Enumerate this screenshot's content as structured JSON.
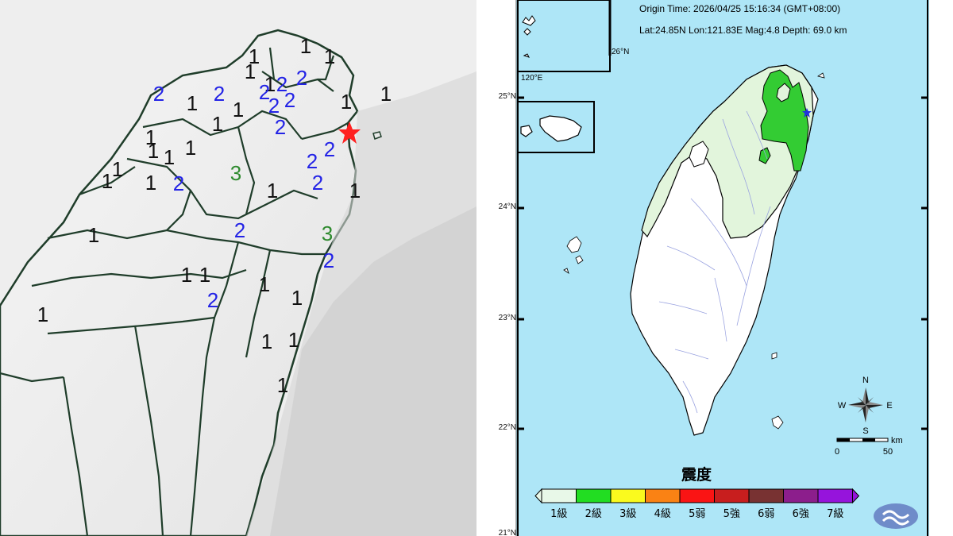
{
  "left_map": {
    "epicenter_marker": "red-star",
    "intensity_labels": [
      {
        "text": "1",
        "level": "1"
      },
      {
        "text": "1",
        "level": "1"
      },
      {
        "text": "1",
        "level": "1"
      },
      {
        "text": "1",
        "level": "1"
      },
      {
        "text": "2",
        "level": "2"
      },
      {
        "text": "1",
        "level": "1"
      },
      {
        "text": "2",
        "level": "2"
      },
      {
        "text": "2",
        "level": "2"
      },
      {
        "text": "2",
        "level": "2"
      },
      {
        "text": "2",
        "level": "2"
      },
      {
        "text": "1",
        "level": "1"
      },
      {
        "text": "1",
        "level": "1"
      },
      {
        "text": "2",
        "level": "2"
      },
      {
        "text": "2",
        "level": "2"
      },
      {
        "text": "1",
        "level": "1"
      },
      {
        "text": "1",
        "level": "1"
      },
      {
        "text": "2",
        "level": "2"
      },
      {
        "text": "1",
        "level": "1"
      },
      {
        "text": "1",
        "level": "1"
      },
      {
        "text": "1",
        "level": "1"
      },
      {
        "text": "1",
        "level": "1"
      },
      {
        "text": "1",
        "level": "1"
      },
      {
        "text": "1",
        "level": "1"
      },
      {
        "text": "1",
        "level": "1"
      },
      {
        "text": "1",
        "level": "1"
      },
      {
        "text": "2",
        "level": "2"
      },
      {
        "text": "3",
        "level": "3"
      },
      {
        "text": "2",
        "level": "2"
      },
      {
        "text": "2",
        "level": "2"
      },
      {
        "text": "2",
        "level": "2"
      },
      {
        "text": "1",
        "level": "1"
      },
      {
        "text": "1",
        "level": "1"
      },
      {
        "text": "2",
        "level": "2"
      },
      {
        "text": "3",
        "level": "3"
      },
      {
        "text": "2",
        "level": "2"
      },
      {
        "text": "1",
        "level": "1"
      },
      {
        "text": "1",
        "level": "1"
      },
      {
        "text": "1",
        "level": "1"
      },
      {
        "text": "1",
        "level": "1"
      },
      {
        "text": "2",
        "level": "2"
      },
      {
        "text": "1",
        "level": "1"
      },
      {
        "text": "1",
        "level": "1"
      },
      {
        "text": "1",
        "level": "1"
      },
      {
        "text": "1",
        "level": "1"
      },
      {
        "text": "1",
        "level": "1"
      }
    ],
    "level_colors": {
      "1": "#111111",
      "2": "#2323e6",
      "3": "#2e8a2e"
    }
  },
  "right_map": {
    "header": {
      "origin_time": "Origin Time: 2026/04/25   15:16:34   (GMT+08:00)",
      "location": "Lat:24.85N  Lon:121.83E  Mag:4.8  Depth: 69.0 km"
    },
    "lat_labels": [
      "25°N",
      "24°N",
      "23°N",
      "22°N",
      "21°N"
    ],
    "inset_labels": {
      "lat": "26°N",
      "lon": "120°E"
    },
    "compass": {
      "n": "N",
      "s": "S",
      "e": "E",
      "w": "W"
    },
    "scale": {
      "unit": "km",
      "ticks": [
        "0",
        "50"
      ]
    },
    "legend": {
      "title": "震度",
      "levels": [
        {
          "label": "1級",
          "color": "#e8f8e8"
        },
        {
          "label": "2級",
          "color": "#22dd22"
        },
        {
          "label": "3級",
          "color": "#fafa1e"
        },
        {
          "label": "4級",
          "color": "#fa8214"
        },
        {
          "label": "5弱",
          "color": "#fa1414"
        },
        {
          "label": "5強",
          "color": "#c81e1e"
        },
        {
          "label": "6弱",
          "color": "#783232"
        },
        {
          "label": "6強",
          "color": "#8c1e8c"
        },
        {
          "label": "7級",
          "color": "#9614dc"
        }
      ]
    },
    "colors": {
      "sea": "#aee6f7",
      "land": "#ffffff",
      "intensity_1": "#e2f5dc",
      "intensity_2": "#33cc33",
      "epicenter": "#2233dd"
    },
    "logo": "cwa-logo"
  }
}
